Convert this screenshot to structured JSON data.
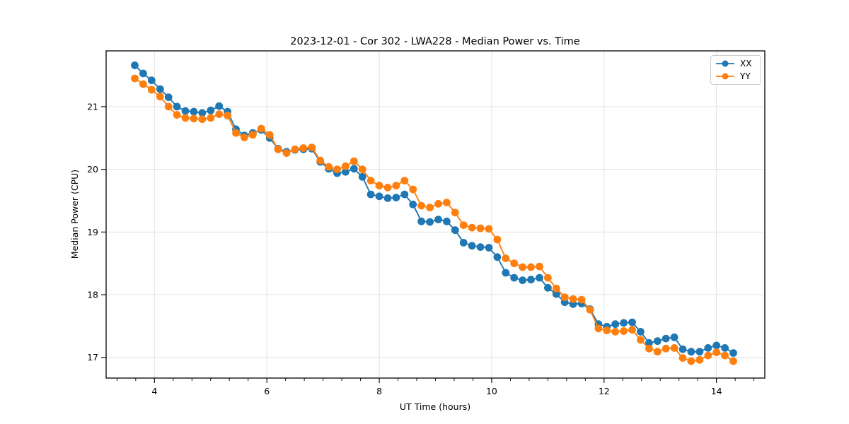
{
  "chart_data": {
    "type": "line",
    "title": "2023-12-01 - Cor 302 - LWA228 - Median Power vs. Time",
    "xlabel": "UT Time (hours)",
    "ylabel": "Median Power (CPU)",
    "xlim": [
      3.14,
      14.86
    ],
    "ylim": [
      16.67,
      21.89
    ],
    "xticks": [
      4,
      6,
      8,
      10,
      12,
      14
    ],
    "yticks": [
      17,
      18,
      19,
      20,
      21
    ],
    "x_minor_tick_step": 0.33333,
    "grid": true,
    "grid_color": "#e0e0e0",
    "legend": {
      "position": "upper right",
      "entries": [
        "XX",
        "YY"
      ]
    },
    "x": [
      3.65,
      3.8,
      3.95,
      4.1,
      4.25,
      4.4,
      4.55,
      4.7,
      4.85,
      5.0,
      5.15,
      5.3,
      5.45,
      5.6,
      5.75,
      5.9,
      6.05,
      6.2,
      6.35,
      6.5,
      6.65,
      6.8,
      6.95,
      7.1,
      7.25,
      7.4,
      7.55,
      7.7,
      7.85,
      8.0,
      8.15,
      8.3,
      8.45,
      8.6,
      8.75,
      8.9,
      9.05,
      9.2,
      9.35,
      9.5,
      9.65,
      9.8,
      9.95,
      10.1,
      10.25,
      10.4,
      10.55,
      10.7,
      10.85,
      11.0,
      11.15,
      11.3,
      11.45,
      11.6,
      11.75,
      11.9,
      12.05,
      12.2,
      12.35,
      12.5,
      12.65,
      12.8,
      12.95,
      13.1,
      13.25,
      13.4,
      13.55,
      13.7,
      13.85,
      14.0,
      14.15,
      14.3
    ],
    "series": [
      {
        "name": "XX",
        "color": "#1f77b4",
        "marker": "circle",
        "values": [
          21.66,
          21.53,
          21.42,
          21.28,
          21.15,
          21.0,
          20.93,
          20.92,
          20.9,
          20.94,
          21.01,
          20.92,
          20.64,
          20.54,
          20.58,
          20.63,
          20.5,
          20.33,
          20.28,
          20.31,
          20.32,
          20.33,
          20.12,
          20.01,
          19.94,
          19.96,
          20.01,
          19.88,
          19.6,
          19.57,
          19.54,
          19.55,
          19.6,
          19.44,
          19.17,
          19.16,
          19.2,
          19.17,
          19.03,
          18.83,
          18.78,
          18.76,
          18.75,
          18.6,
          18.35,
          18.27,
          18.23,
          18.24,
          18.27,
          18.11,
          18.01,
          17.88,
          17.85,
          17.86,
          17.77,
          17.53,
          17.49,
          17.53,
          17.55,
          17.56,
          17.41,
          17.23,
          17.26,
          17.3,
          17.32,
          17.13,
          17.09,
          17.09,
          17.15,
          17.19,
          17.15,
          17.07
        ]
      },
      {
        "name": "YY",
        "color": "#ff7f0e",
        "marker": "circle",
        "values": [
          21.45,
          21.36,
          21.27,
          21.16,
          21.0,
          20.87,
          20.82,
          20.81,
          20.8,
          20.82,
          20.88,
          20.86,
          20.58,
          20.51,
          20.55,
          20.65,
          20.55,
          20.32,
          20.26,
          20.32,
          20.34,
          20.35,
          20.14,
          20.04,
          20.0,
          20.05,
          20.13,
          20.0,
          19.82,
          19.74,
          19.71,
          19.74,
          19.82,
          19.68,
          19.42,
          19.39,
          19.45,
          19.47,
          19.31,
          19.11,
          19.07,
          19.06,
          19.05,
          18.88,
          18.58,
          18.5,
          18.44,
          18.44,
          18.45,
          18.27,
          18.1,
          17.96,
          17.93,
          17.92,
          17.76,
          17.46,
          17.43,
          17.41,
          17.42,
          17.44,
          17.28,
          17.14,
          17.09,
          17.14,
          17.15,
          16.99,
          16.94,
          16.96,
          17.03,
          17.08,
          17.03,
          16.94
        ]
      }
    ]
  }
}
